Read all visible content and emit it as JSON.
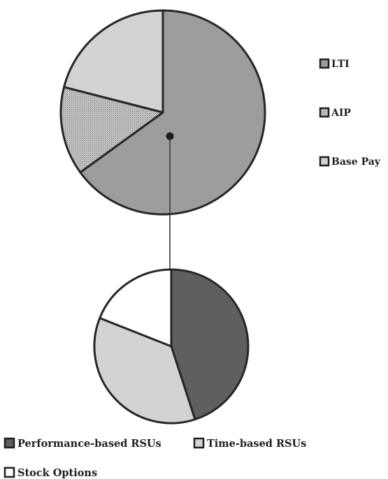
{
  "chart_data": [
    {
      "type": "pie",
      "title": "",
      "categories": [
        "LTI",
        "AIP",
        "Base Pay"
      ],
      "values": [
        65,
        14,
        21
      ],
      "colors": [
        "#9d9d9d",
        "#c4c4c4",
        "#d3d3d3"
      ],
      "patterns": [
        "solid",
        "dotted",
        "solid"
      ],
      "legend": {
        "position": "right",
        "items": [
          "LTI",
          "AIP",
          "Base Pay"
        ]
      }
    },
    {
      "type": "pie",
      "title": "",
      "categories": [
        "Performance-based RSUs",
        "Time-based RSUs",
        "Stock Options"
      ],
      "values": [
        45,
        36,
        19
      ],
      "colors": [
        "#5f5f5f",
        "#d3d3d3",
        "#ffffff"
      ],
      "patterns": [
        "solid",
        "solid",
        "solid"
      ],
      "legend": {
        "position": "bottom",
        "items": [
          "Performance-based RSUs",
          "Time-based RSUs",
          "Stock Options"
        ]
      }
    }
  ]
}
